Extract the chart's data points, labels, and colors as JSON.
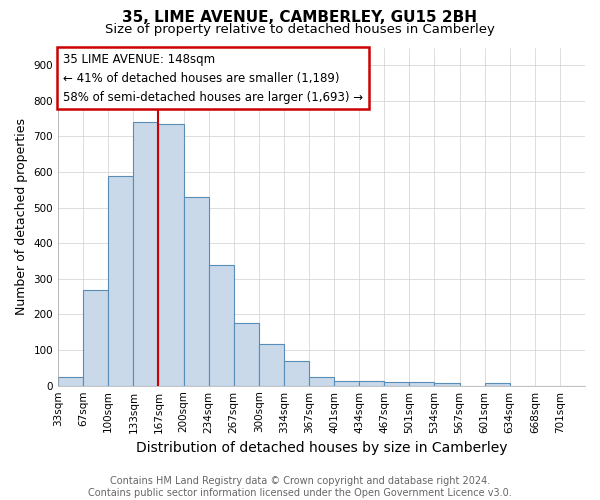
{
  "title": "35, LIME AVENUE, CAMBERLEY, GU15 2BH",
  "subtitle": "Size of property relative to detached houses in Camberley",
  "xlabel": "Distribution of detached houses by size in Camberley",
  "ylabel": "Number of detached properties",
  "footer_line1": "Contains HM Land Registry data © Crown copyright and database right 2024.",
  "footer_line2": "Contains public sector information licensed under the Open Government Licence v3.0.",
  "bin_labels": [
    "33sqm",
    "67sqm",
    "100sqm",
    "133sqm",
    "167sqm",
    "200sqm",
    "234sqm",
    "267sqm",
    "300sqm",
    "334sqm",
    "367sqm",
    "401sqm",
    "434sqm",
    "467sqm",
    "501sqm",
    "534sqm",
    "567sqm",
    "601sqm",
    "634sqm",
    "668sqm",
    "701sqm"
  ],
  "bar_values": [
    25,
    270,
    590,
    740,
    735,
    530,
    340,
    175,
    118,
    68,
    25,
    13,
    14,
    10,
    9,
    8,
    0,
    8,
    0,
    0,
    0
  ],
  "bar_color": "#c9d9ea",
  "bar_edge_color": "#5a8db5",
  "vline_position": 4.0,
  "annotation_title": "35 LIME AVENUE: 148sqm",
  "annotation_line2": "← 41% of detached houses are smaller (1,189)",
  "annotation_line3": "58% of semi-detached houses are larger (1,693) →",
  "annotation_box_color": "#ffffff",
  "annotation_box_edge_color": "#cc0000",
  "vline_color": "#cc0000",
  "ylim": [
    0,
    950
  ],
  "yticks": [
    0,
    100,
    200,
    300,
    400,
    500,
    600,
    700,
    800,
    900
  ],
  "background_color": "#ffffff",
  "grid_color": "#d0d0d0",
  "title_fontsize": 11,
  "subtitle_fontsize": 9.5,
  "xlabel_fontsize": 10,
  "ylabel_fontsize": 9,
  "tick_fontsize": 7.5,
  "annotation_fontsize": 8.5,
  "footer_fontsize": 7
}
